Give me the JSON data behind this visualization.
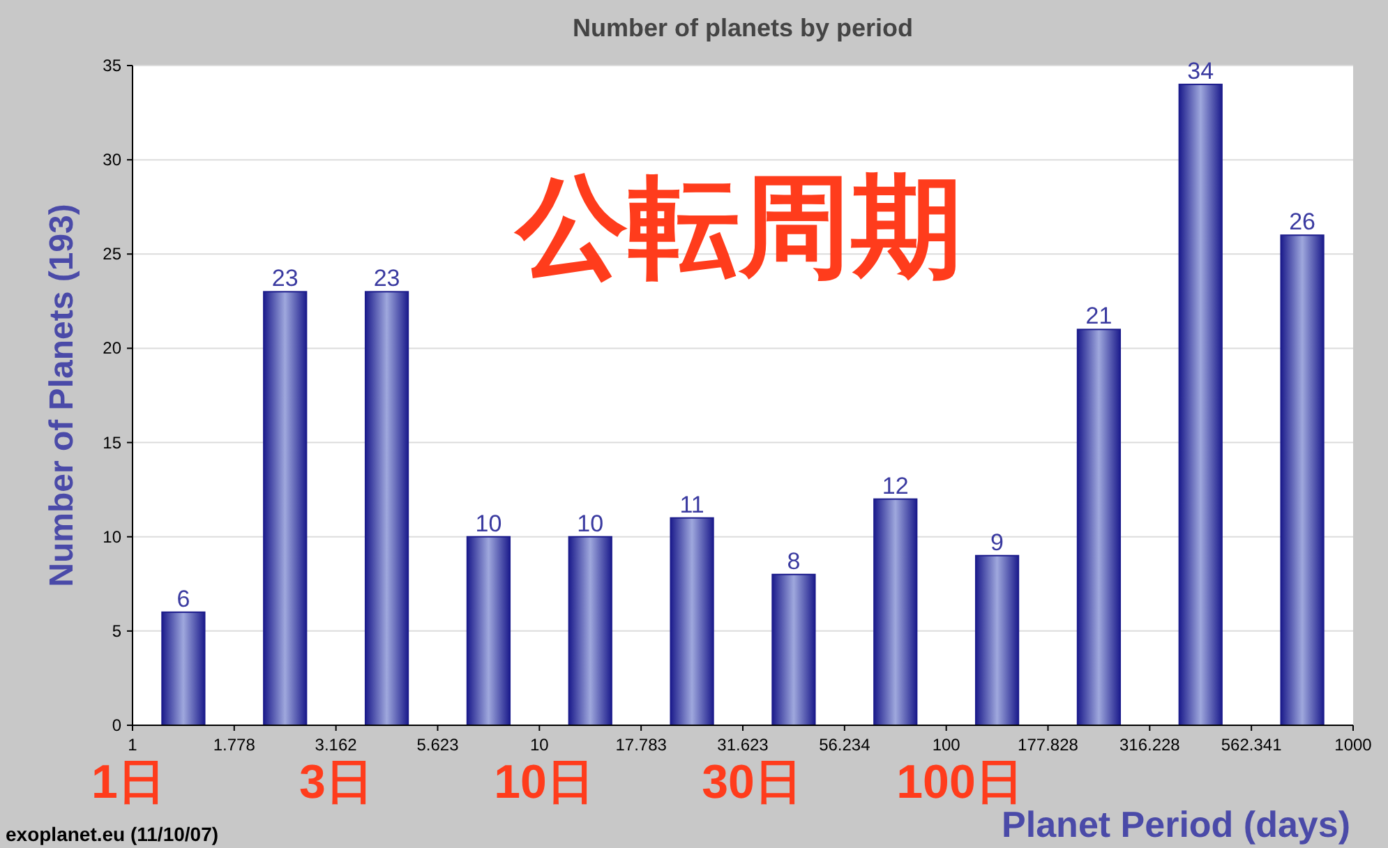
{
  "chart_data": {
    "type": "histogram",
    "title": "Number of planets by period",
    "xlabel": "Planet Period (days)",
    "ylabel": "Number of Planets (193)",
    "bins": [
      1,
      1.778,
      3.162,
      5.623,
      10,
      17.783,
      31.623,
      56.234,
      100,
      177.828,
      316.228,
      562.341,
      1000
    ],
    "values": [
      6,
      23,
      23,
      10,
      10,
      11,
      8,
      12,
      9,
      21,
      34,
      26
    ],
    "color": "#1c1c8c",
    "log": "x",
    "xlim": [
      1,
      1000
    ],
    "xticks": [
      1,
      1.778,
      3.162,
      5.623,
      10,
      17.783,
      31.623,
      56.234,
      100,
      177.828,
      316.228,
      562.341,
      1000
    ],
    "ylim": [
      0,
      35
    ],
    "yticks": [
      0,
      5,
      10,
      15,
      20,
      25,
      30,
      35
    ],
    "grid": "y",
    "data_labels": true,
    "annotations": [
      "公転周期",
      "1日",
      "3日",
      "10日",
      "30日",
      "100日",
      "exoplanet.eu (11/10/07)"
    ]
  }
}
